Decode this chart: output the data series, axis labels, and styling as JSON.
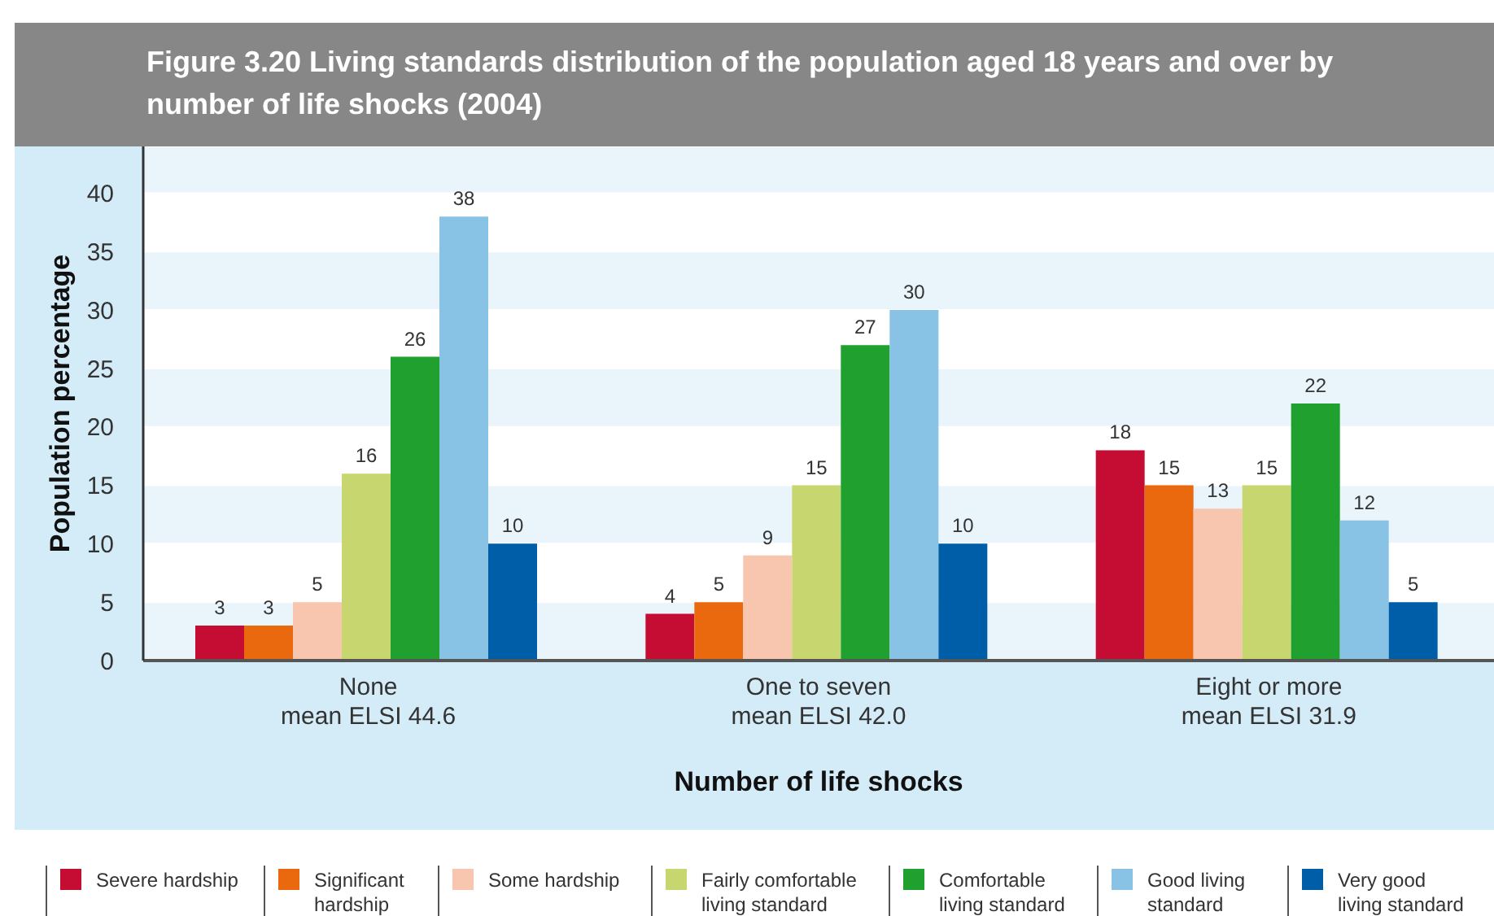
{
  "chart_data": {
    "type": "bar",
    "title": "Figure 3.20 Living standards distribution of the population aged 18 years and over by number of life shocks (2004)",
    "xlabel": "Number of life shocks",
    "ylabel": "Population percentage",
    "categories": [
      "None\nmean ELSI 44.6",
      "One to seven\nmean ELSI 42.0",
      "Eight or more\nmean ELSI 31.9"
    ],
    "series": [
      {
        "name": "Severe hardship",
        "color": "#c50c33",
        "values": [
          3,
          4,
          18
        ]
      },
      {
        "name": "Significant hardship",
        "color": "#ea690f",
        "values": [
          3,
          5,
          15
        ]
      },
      {
        "name": "Some hardship",
        "color": "#f8c6ae",
        "values": [
          5,
          9,
          13
        ]
      },
      {
        "name": "Fairly comfortable living standard",
        "color": "#c8d66f",
        "values": [
          16,
          15,
          15
        ]
      },
      {
        "name": "Comfortable living standard",
        "color": "#20a02f",
        "values": [
          26,
          27,
          22
        ]
      },
      {
        "name": "Good living standard",
        "color": "#88c2e5",
        "values": [
          38,
          30,
          12
        ]
      },
      {
        "name": "Very good living standard",
        "color": "#005ea8",
        "values": [
          10,
          10,
          5
        ]
      }
    ],
    "ylim": [
      0,
      44
    ],
    "yticks": [
      0,
      5,
      10,
      15,
      20,
      25,
      30,
      35,
      40
    ],
    "grid": "y",
    "legend": "bottom",
    "data_labels": true
  }
}
